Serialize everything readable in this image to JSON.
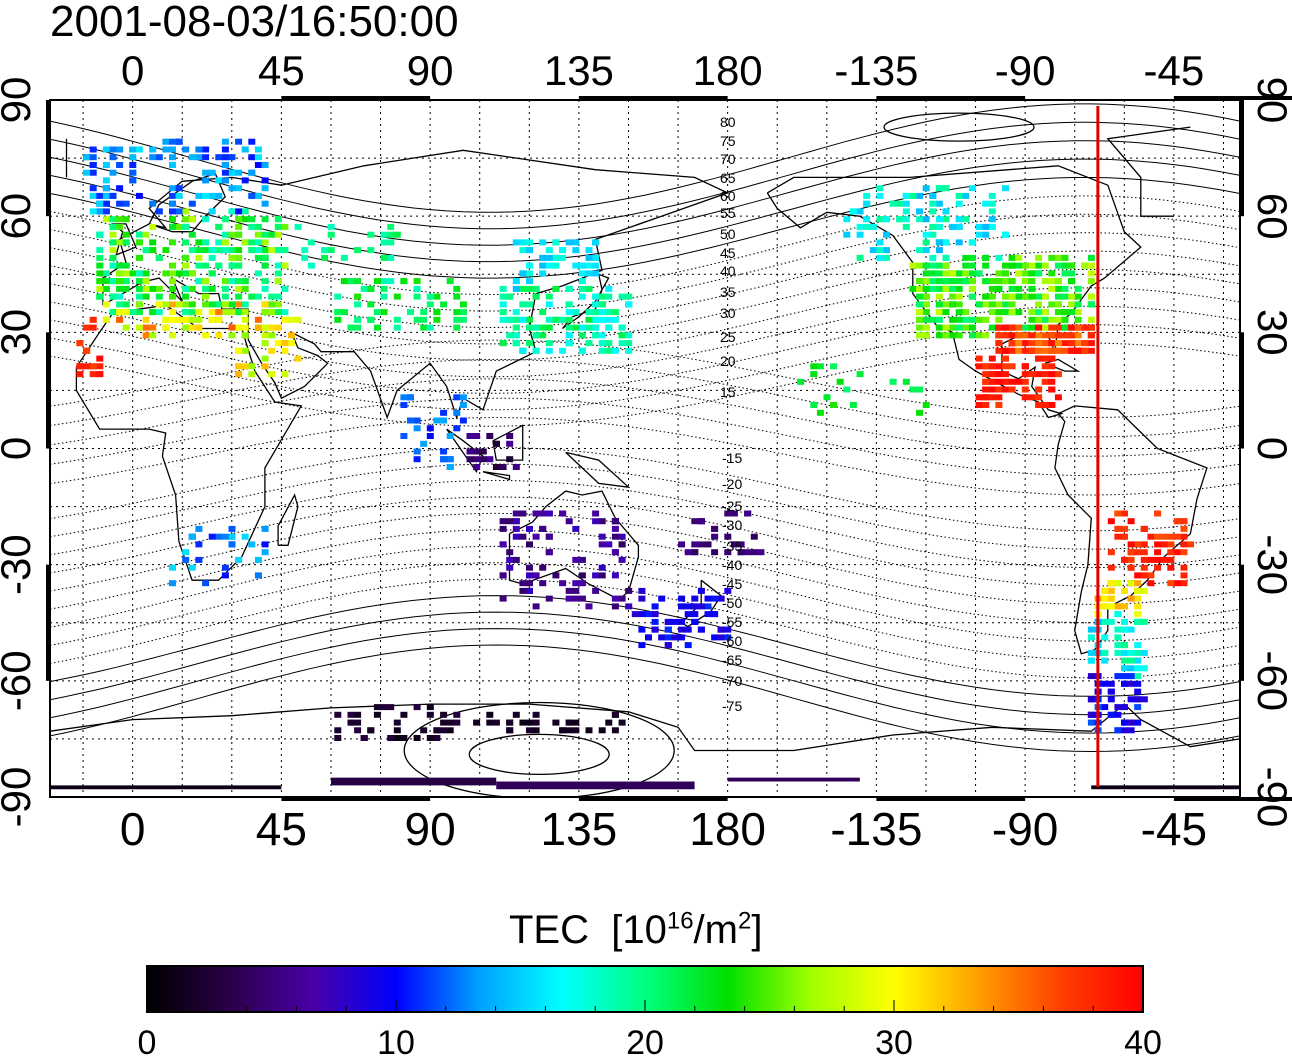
{
  "title": "2001-08-03/16:50:00",
  "map": {
    "lon_ticks": [
      "0",
      "45",
      "90",
      "135",
      "180",
      "-135",
      "-90",
      "-45"
    ],
    "lat_ticks": [
      "90",
      "60",
      "30",
      "0",
      "-30",
      "-60",
      "-90"
    ],
    "lon_range": [
      -25,
      335
    ],
    "lat_range": [
      -90,
      90
    ],
    "grid": "dotted 15-degree",
    "terminator_longitude": -68,
    "terminator_color": "#e00000",
    "contour_labels_north": [
      "80",
      "75",
      "70",
      "65",
      "60",
      "55",
      "50",
      "45",
      "40",
      "35",
      "30",
      "25",
      "20",
      "15"
    ],
    "contour_labels_south": [
      "-15",
      "-20",
      "-25",
      "-30",
      "-35",
      "-40",
      "-45",
      "-50",
      "-55",
      "-60",
      "-65",
      "-70",
      "-75"
    ]
  },
  "colorbar": {
    "label": "TEC",
    "unit_prefix": "[10",
    "unit_exp1": "16",
    "unit_mid": "/m",
    "unit_exp2": "2",
    "unit_suffix": "]",
    "ticks": [
      "0",
      "10",
      "20",
      "30",
      "40"
    ],
    "range": [
      0,
      40
    ],
    "colors": [
      "#000000",
      "#2a0048",
      "#4a00a8",
      "#0000ff",
      "#00a0ff",
      "#00ffff",
      "#00ff80",
      "#00e000",
      "#a0ff00",
      "#ffff00",
      "#ffa000",
      "#ff4000",
      "#ff0000"
    ]
  }
}
